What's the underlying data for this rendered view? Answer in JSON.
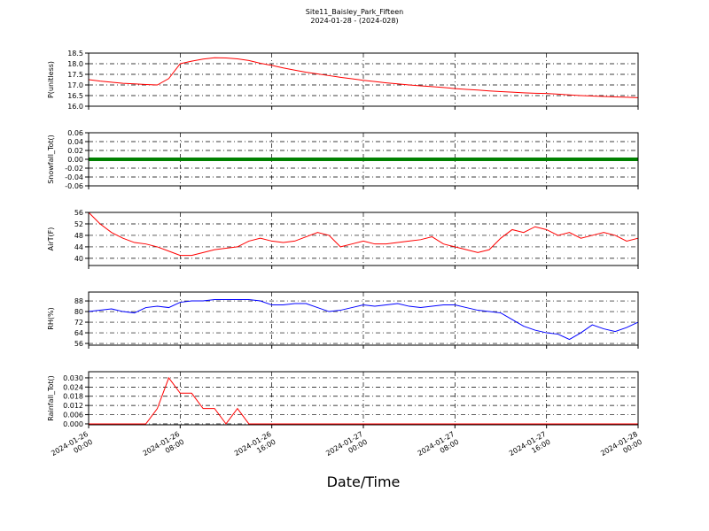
{
  "title": "Site11_Baisley_Park_Fifteen",
  "subtitle": "2024-01-28 - (2024-028)",
  "x_label": "Date/Time",
  "xlim": [
    "2024-01-26 00:00",
    "2024-01-28 00:00"
  ],
  "xticks": [
    "2024-01-26 00:00",
    "2024-01-26 08:00",
    "2024-01-26 16:00",
    "2024-01-27 00:00",
    "2024-01-27 08:00",
    "2024-01-27 16:00",
    "2024-01-28 00:00"
  ],
  "x": [
    "2024-01-26 00:00",
    "2024-01-26 01:00",
    "2024-01-26 02:00",
    "2024-01-26 03:00",
    "2024-01-26 04:00",
    "2024-01-26 05:00",
    "2024-01-26 06:00",
    "2024-01-26 07:00",
    "2024-01-26 08:00",
    "2024-01-26 09:00",
    "2024-01-26 10:00",
    "2024-01-26 11:00",
    "2024-01-26 12:00",
    "2024-01-26 13:00",
    "2024-01-26 14:00",
    "2024-01-26 15:00",
    "2024-01-26 16:00",
    "2024-01-26 17:00",
    "2024-01-26 18:00",
    "2024-01-26 19:00",
    "2024-01-26 20:00",
    "2024-01-26 21:00",
    "2024-01-26 22:00",
    "2024-01-26 23:00",
    "2024-01-27 00:00",
    "2024-01-27 01:00",
    "2024-01-27 02:00",
    "2024-01-27 03:00",
    "2024-01-27 04:00",
    "2024-01-27 05:00",
    "2024-01-27 06:00",
    "2024-01-27 07:00",
    "2024-01-27 08:00",
    "2024-01-27 09:00",
    "2024-01-27 10:00",
    "2024-01-27 11:00",
    "2024-01-27 12:00",
    "2024-01-27 13:00",
    "2024-01-27 14:00",
    "2024-01-27 15:00",
    "2024-01-27 16:00",
    "2024-01-27 17:00",
    "2024-01-27 18:00",
    "2024-01-27 19:00",
    "2024-01-27 20:00",
    "2024-01-27 21:00",
    "2024-01-27 22:00",
    "2024-01-27 23:00",
    "2024-01-28 00:00"
  ],
  "chart_data": [
    {
      "type": "line",
      "y_label": "P(unitless)",
      "ylim": [
        16.0,
        18.5
      ],
      "grid": true,
      "yticks": [
        {
          "value": 16.0,
          "label": "16.0"
        },
        16.5,
        {
          "value": 17.0,
          "label": "17.0"
        },
        17.5,
        {
          "value": 18.0,
          "label": "18.0"
        },
        18.5
      ],
      "series": [
        {
          "color": "#ff0000",
          "values": [
            17.25,
            17.18,
            17.13,
            17.08,
            17.05,
            17.02,
            17.0,
            17.3,
            18.0,
            18.12,
            18.22,
            18.28,
            18.27,
            18.23,
            18.15,
            18.02,
            17.92,
            17.8,
            17.7,
            17.6,
            17.52,
            17.44,
            17.36,
            17.29,
            17.22,
            17.16,
            17.1,
            17.05,
            17.0,
            16.96,
            16.92,
            16.88,
            16.83,
            16.79,
            16.76,
            16.72,
            16.69,
            16.66,
            16.63,
            16.61,
            16.6,
            16.57,
            16.53,
            16.5,
            16.48,
            16.46,
            16.44,
            16.42,
            16.4
          ]
        }
      ]
    },
    {
      "type": "line",
      "y_label": "Snowfall_Tot()",
      "ylim": [
        -0.06,
        0.06
      ],
      "grid": true,
      "yticks": [
        -0.06,
        -0.04,
        -0.02,
        {
          "value": 0,
          "label": "0.00"
        },
        0.02,
        0.04,
        0.06
      ],
      "series": [
        {
          "color": "#008000",
          "values": [
            0,
            0,
            0,
            0,
            0,
            0,
            0,
            0,
            0,
            0,
            0,
            0,
            0,
            0,
            0,
            0,
            0,
            0,
            0,
            0,
            0,
            0,
            0,
            0,
            0,
            0,
            0,
            0,
            0,
            0,
            0,
            0,
            0,
            0,
            0,
            0,
            0,
            0,
            0,
            0,
            0,
            0,
            0,
            0,
            0,
            0,
            0,
            0,
            0
          ]
        }
      ]
    },
    {
      "type": "line",
      "y_label": "AirT(F)",
      "ylim": [
        37.5,
        56
      ],
      "grid": true,
      "yticks": [
        40,
        44,
        48,
        52,
        56
      ],
      "series": [
        {
          "color": "#ff0000",
          "values": [
            56,
            52,
            49,
            47,
            45.5,
            45,
            44,
            42.5,
            41,
            41,
            42,
            43,
            43.5,
            44,
            46,
            47,
            46,
            45.5,
            46,
            47.5,
            49,
            48,
            44,
            45,
            46,
            45,
            45,
            45.5,
            46,
            46.5,
            47.5,
            45,
            44,
            43,
            42,
            43,
            47,
            50,
            49,
            51,
            50,
            48,
            49,
            47,
            48,
            49,
            48,
            46,
            47
          ]
        }
      ]
    },
    {
      "type": "line",
      "y_label": "RH(%)",
      "ylim": [
        54.7,
        94.7
      ],
      "grid": true,
      "yticks": [
        56,
        64,
        72,
        80,
        88
      ],
      "series": [
        {
          "color": "#0000ff",
          "values": [
            80,
            81,
            82,
            80,
            79,
            83,
            84,
            83,
            87,
            88,
            88,
            89,
            89,
            89,
            89,
            88,
            85,
            85,
            86,
            86,
            83,
            80,
            81,
            83,
            85,
            84,
            85,
            86,
            84,
            83,
            84,
            85,
            85,
            83,
            81,
            80,
            79,
            74,
            69,
            66,
            64,
            63,
            59,
            64,
            70,
            67,
            65,
            68,
            72
          ]
        }
      ]
    },
    {
      "type": "line",
      "y_label": "Rainfall_Tot()",
      "ylim": [
        -0.0006,
        0.034
      ],
      "grid": true,
      "yticks": [
        {
          "value": 0,
          "label": "0.000"
        },
        {
          "value": 0.006,
          "label": "0.006"
        },
        {
          "value": 0.012,
          "label": "0.012"
        },
        {
          "value": 0.018,
          "label": "0.018"
        },
        {
          "value": 0.024,
          "label": "0.024"
        },
        {
          "value": 0.03,
          "label": "0.030"
        }
      ],
      "series": [
        {
          "color": "#ff0000",
          "values": [
            0,
            0,
            0,
            0,
            0,
            0,
            0.01,
            0.03,
            0.02,
            0.02,
            0.01,
            0.01,
            0,
            0.01,
            0,
            0,
            0,
            0,
            0,
            0,
            0,
            0,
            0,
            0,
            0,
            0,
            0,
            0,
            0,
            0,
            0,
            0,
            0,
            0,
            0,
            0,
            0,
            0,
            0,
            0,
            0,
            0,
            0,
            0,
            0,
            0,
            0,
            0,
            0
          ]
        }
      ]
    }
  ]
}
